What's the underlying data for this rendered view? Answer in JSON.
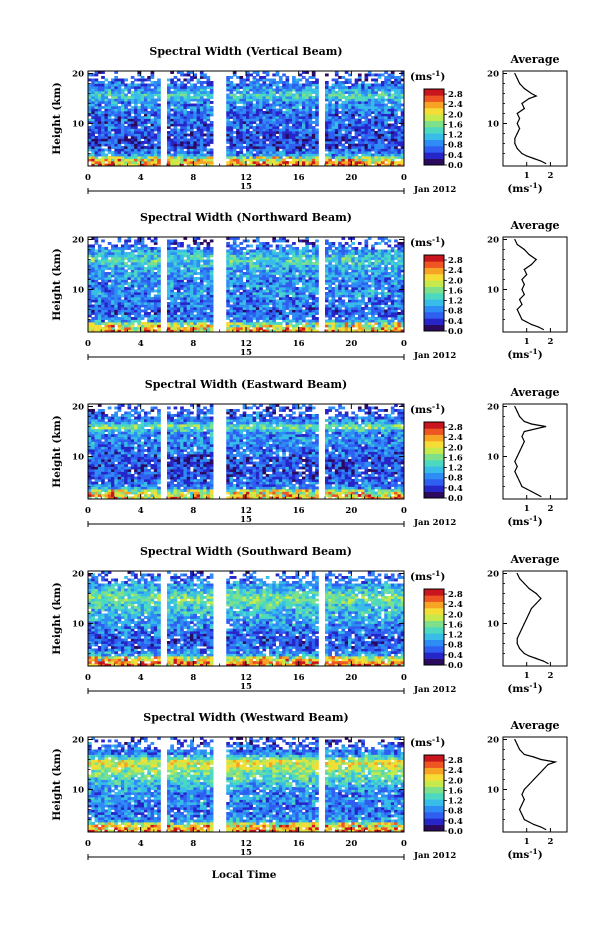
{
  "chart_data": {
    "type": "heatmap",
    "xlabel": "Local Time",
    "date_label": "Jan 2012",
    "day_label": "15",
    "ylabel": "Height (km)",
    "colorbar_unit": "(ms",
    "colorbar_unit_exp": "-1",
    "colorbar_unit_close": ")",
    "colorbar_ticks": [
      "0.0",
      "0.4",
      "0.8",
      "1.2",
      "1.6",
      "2.0",
      "2.4",
      "2.8"
    ],
    "colorbar_range": [
      0,
      3
    ],
    "x_range": [
      0,
      24
    ],
    "x_ticks": [
      "0",
      "4",
      "8",
      "12",
      "16",
      "20",
      "0"
    ],
    "y_range": [
      1.5,
      20.5
    ],
    "y_ticks": [
      "20",
      "10"
    ],
    "avg_title": "Average",
    "avg_ticks": [
      "1",
      "2"
    ],
    "avg_x_range": [
      0,
      2.7
    ],
    "colors": [
      "#2b0a5e",
      "#2626c8",
      "#2f5ff0",
      "#2e8cf5",
      "#38bde8",
      "#4cd9c0",
      "#7fe08a",
      "#c6ea4c",
      "#f5dd35",
      "#f7a323",
      "#ee5522",
      "#c9151d"
    ],
    "panels": [
      {
        "title": "Spectral Width (Vertical Beam)",
        "gaps": [
          [
            5.5,
            6.0
          ],
          [
            9.5,
            10.5
          ],
          [
            17.5,
            18.0
          ]
        ],
        "profile": [
          {
            "h": 2.0,
            "w": 1.8
          },
          {
            "h": 2.5,
            "w": 1.6
          },
          {
            "h": 3.0,
            "w": 1.3
          },
          {
            "h": 3.5,
            "w": 1.0
          },
          {
            "h": 4.0,
            "w": 0.8
          },
          {
            "h": 5.0,
            "w": 0.6
          },
          {
            "h": 6.0,
            "w": 0.5
          },
          {
            "h": 7.0,
            "w": 0.5
          },
          {
            "h": 8.0,
            "w": 0.6
          },
          {
            "h": 9.0,
            "w": 0.7
          },
          {
            "h": 10.0,
            "w": 0.6
          },
          {
            "h": 11.0,
            "w": 0.7
          },
          {
            "h": 12.0,
            "w": 0.6
          },
          {
            "h": 13.0,
            "w": 0.9
          },
          {
            "h": 14.0,
            "w": 0.8
          },
          {
            "h": 15.0,
            "w": 1.1
          },
          {
            "h": 15.5,
            "w": 1.4
          },
          {
            "h": 16.0,
            "w": 1.2
          },
          {
            "h": 17.0,
            "w": 0.9
          },
          {
            "h": 18.0,
            "w": 0.7
          },
          {
            "h": 19.0,
            "w": 0.6
          },
          {
            "h": 20.0,
            "w": 0.5
          }
        ]
      },
      {
        "title": "Spectral Width (Northward Beam)",
        "gaps": [
          [
            5.5,
            6.0
          ],
          [
            9.5,
            10.5
          ],
          [
            17.5,
            18.0
          ]
        ],
        "profile": [
          {
            "h": 2.0,
            "w": 1.7
          },
          {
            "h": 2.5,
            "w": 1.5
          },
          {
            "h": 3.0,
            "w": 1.2
          },
          {
            "h": 3.5,
            "w": 1.0
          },
          {
            "h": 4.0,
            "w": 0.8
          },
          {
            "h": 5.0,
            "w": 0.7
          },
          {
            "h": 6.0,
            "w": 0.6
          },
          {
            "h": 7.0,
            "w": 0.8
          },
          {
            "h": 8.0,
            "w": 0.7
          },
          {
            "h": 9.0,
            "w": 0.9
          },
          {
            "h": 10.0,
            "w": 0.8
          },
          {
            "h": 11.0,
            "w": 0.9
          },
          {
            "h": 12.0,
            "w": 0.8
          },
          {
            "h": 13.0,
            "w": 1.0
          },
          {
            "h": 14.0,
            "w": 0.9
          },
          {
            "h": 15.0,
            "w": 1.2
          },
          {
            "h": 16.0,
            "w": 1.4
          },
          {
            "h": 17.0,
            "w": 1.1
          },
          {
            "h": 18.0,
            "w": 0.9
          },
          {
            "h": 19.0,
            "w": 0.6
          },
          {
            "h": 20.0,
            "w": 0.5
          }
        ]
      },
      {
        "title": "Spectral Width (Eastward Beam)",
        "gaps": [
          [
            5.5,
            6.0
          ],
          [
            9.5,
            10.5
          ],
          [
            17.5,
            18.0
          ]
        ],
        "profile": [
          {
            "h": 2.0,
            "w": 1.6
          },
          {
            "h": 2.5,
            "w": 1.4
          },
          {
            "h": 3.0,
            "w": 1.2
          },
          {
            "h": 3.5,
            "w": 1.0
          },
          {
            "h": 4.0,
            "w": 0.8
          },
          {
            "h": 5.0,
            "w": 0.7
          },
          {
            "h": 6.0,
            "w": 0.6
          },
          {
            "h": 7.0,
            "w": 0.5
          },
          {
            "h": 8.0,
            "w": 0.6
          },
          {
            "h": 9.0,
            "w": 0.5
          },
          {
            "h": 10.0,
            "w": 0.6
          },
          {
            "h": 11.0,
            "w": 0.7
          },
          {
            "h": 12.0,
            "w": 0.8
          },
          {
            "h": 13.0,
            "w": 0.9
          },
          {
            "h": 14.0,
            "w": 0.8
          },
          {
            "h": 15.0,
            "w": 0.9
          },
          {
            "h": 16.0,
            "w": 1.8
          },
          {
            "h": 16.5,
            "w": 1.2
          },
          {
            "h": 17.0,
            "w": 0.9
          },
          {
            "h": 18.0,
            "w": 0.7
          },
          {
            "h": 19.0,
            "w": 0.6
          },
          {
            "h": 20.0,
            "w": 0.5
          }
        ]
      },
      {
        "title": "Spectral Width (Southward Beam)",
        "gaps": [
          [
            5.5,
            6.0
          ],
          [
            9.5,
            10.5
          ],
          [
            17.5,
            18.0
          ]
        ],
        "profile": [
          {
            "h": 2.0,
            "w": 1.9
          },
          {
            "h": 2.5,
            "w": 1.7
          },
          {
            "h": 3.0,
            "w": 1.4
          },
          {
            "h": 3.5,
            "w": 1.1
          },
          {
            "h": 4.0,
            "w": 0.9
          },
          {
            "h": 5.0,
            "w": 0.7
          },
          {
            "h": 6.0,
            "w": 0.6
          },
          {
            "h": 7.0,
            "w": 0.6
          },
          {
            "h": 8.0,
            "w": 0.7
          },
          {
            "h": 9.0,
            "w": 0.8
          },
          {
            "h": 10.0,
            "w": 0.9
          },
          {
            "h": 11.0,
            "w": 1.0
          },
          {
            "h": 12.0,
            "w": 1.1
          },
          {
            "h": 13.0,
            "w": 1.2
          },
          {
            "h": 14.0,
            "w": 1.4
          },
          {
            "h": 15.0,
            "w": 1.6
          },
          {
            "h": 16.0,
            "w": 1.4
          },
          {
            "h": 17.0,
            "w": 1.1
          },
          {
            "h": 18.0,
            "w": 0.9
          },
          {
            "h": 19.0,
            "w": 0.7
          },
          {
            "h": 20.0,
            "w": 0.6
          }
        ]
      },
      {
        "title": "Spectral Width (Westward Beam)",
        "gaps": [
          [
            5.5,
            6.0
          ],
          [
            9.5,
            10.5
          ],
          [
            17.5,
            18.0
          ]
        ],
        "profile": [
          {
            "h": 2.0,
            "w": 1.8
          },
          {
            "h": 2.5,
            "w": 1.6
          },
          {
            "h": 3.0,
            "w": 1.3
          },
          {
            "h": 3.5,
            "w": 1.1
          },
          {
            "h": 4.0,
            "w": 0.9
          },
          {
            "h": 5.0,
            "w": 0.8
          },
          {
            "h": 6.0,
            "w": 0.7
          },
          {
            "h": 7.0,
            "w": 0.8
          },
          {
            "h": 8.0,
            "w": 0.9
          },
          {
            "h": 9.0,
            "w": 0.8
          },
          {
            "h": 10.0,
            "w": 0.9
          },
          {
            "h": 11.0,
            "w": 1.1
          },
          {
            "h": 12.0,
            "w": 1.3
          },
          {
            "h": 13.0,
            "w": 1.5
          },
          {
            "h": 14.0,
            "w": 1.7
          },
          {
            "h": 15.0,
            "w": 1.9
          },
          {
            "h": 15.5,
            "w": 2.2
          },
          {
            "h": 16.0,
            "w": 1.6
          },
          {
            "h": 16.5,
            "w": 1.3
          },
          {
            "h": 17.0,
            "w": 0.9
          },
          {
            "h": 18.0,
            "w": 0.7
          },
          {
            "h": 19.0,
            "w": 0.6
          },
          {
            "h": 20.0,
            "w": 0.5
          }
        ]
      }
    ]
  }
}
